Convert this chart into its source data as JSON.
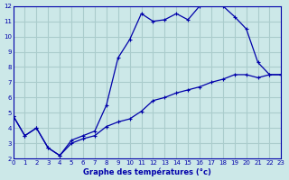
{
  "xlabel": "Graphe des températures (°c)",
  "bg_color": "#cce8e8",
  "grid_color": "#aacccc",
  "line_color": "#0000aa",
  "xlim": [
    0,
    23
  ],
  "ylim": [
    2,
    12
  ],
  "xticks": [
    0,
    1,
    2,
    3,
    4,
    5,
    6,
    7,
    8,
    9,
    10,
    11,
    12,
    13,
    14,
    15,
    16,
    17,
    18,
    19,
    20,
    21,
    22,
    23
  ],
  "yticks": [
    2,
    3,
    4,
    5,
    6,
    7,
    8,
    9,
    10,
    11,
    12
  ],
  "line1_x": [
    0,
    1,
    2,
    3,
    4,
    5,
    6,
    7,
    8,
    9,
    10,
    11,
    12,
    13,
    14,
    15,
    16,
    17,
    18,
    19,
    20,
    21,
    22,
    23
  ],
  "line1_y": [
    4.8,
    3.5,
    4.0,
    2.7,
    2.2,
    3.2,
    3.5,
    3.8,
    5.5,
    8.6,
    9.8,
    11.5,
    11.0,
    11.1,
    11.5,
    11.1,
    12.0,
    12.3,
    12.0,
    11.3,
    10.5,
    8.3,
    7.5,
    7.5
  ],
  "line2_x": [
    0,
    1,
    2,
    3,
    4,
    5,
    6,
    7,
    8,
    9,
    10,
    11,
    12,
    13,
    14,
    15,
    16,
    17,
    18,
    19,
    20,
    21,
    22,
    23
  ],
  "line2_y": [
    4.8,
    3.5,
    4.0,
    2.7,
    2.2,
    3.0,
    3.3,
    3.5,
    4.1,
    4.4,
    4.6,
    5.1,
    5.8,
    6.0,
    6.3,
    6.5,
    6.7,
    7.0,
    7.2,
    7.5,
    7.5,
    7.3,
    7.5,
    7.5
  ]
}
